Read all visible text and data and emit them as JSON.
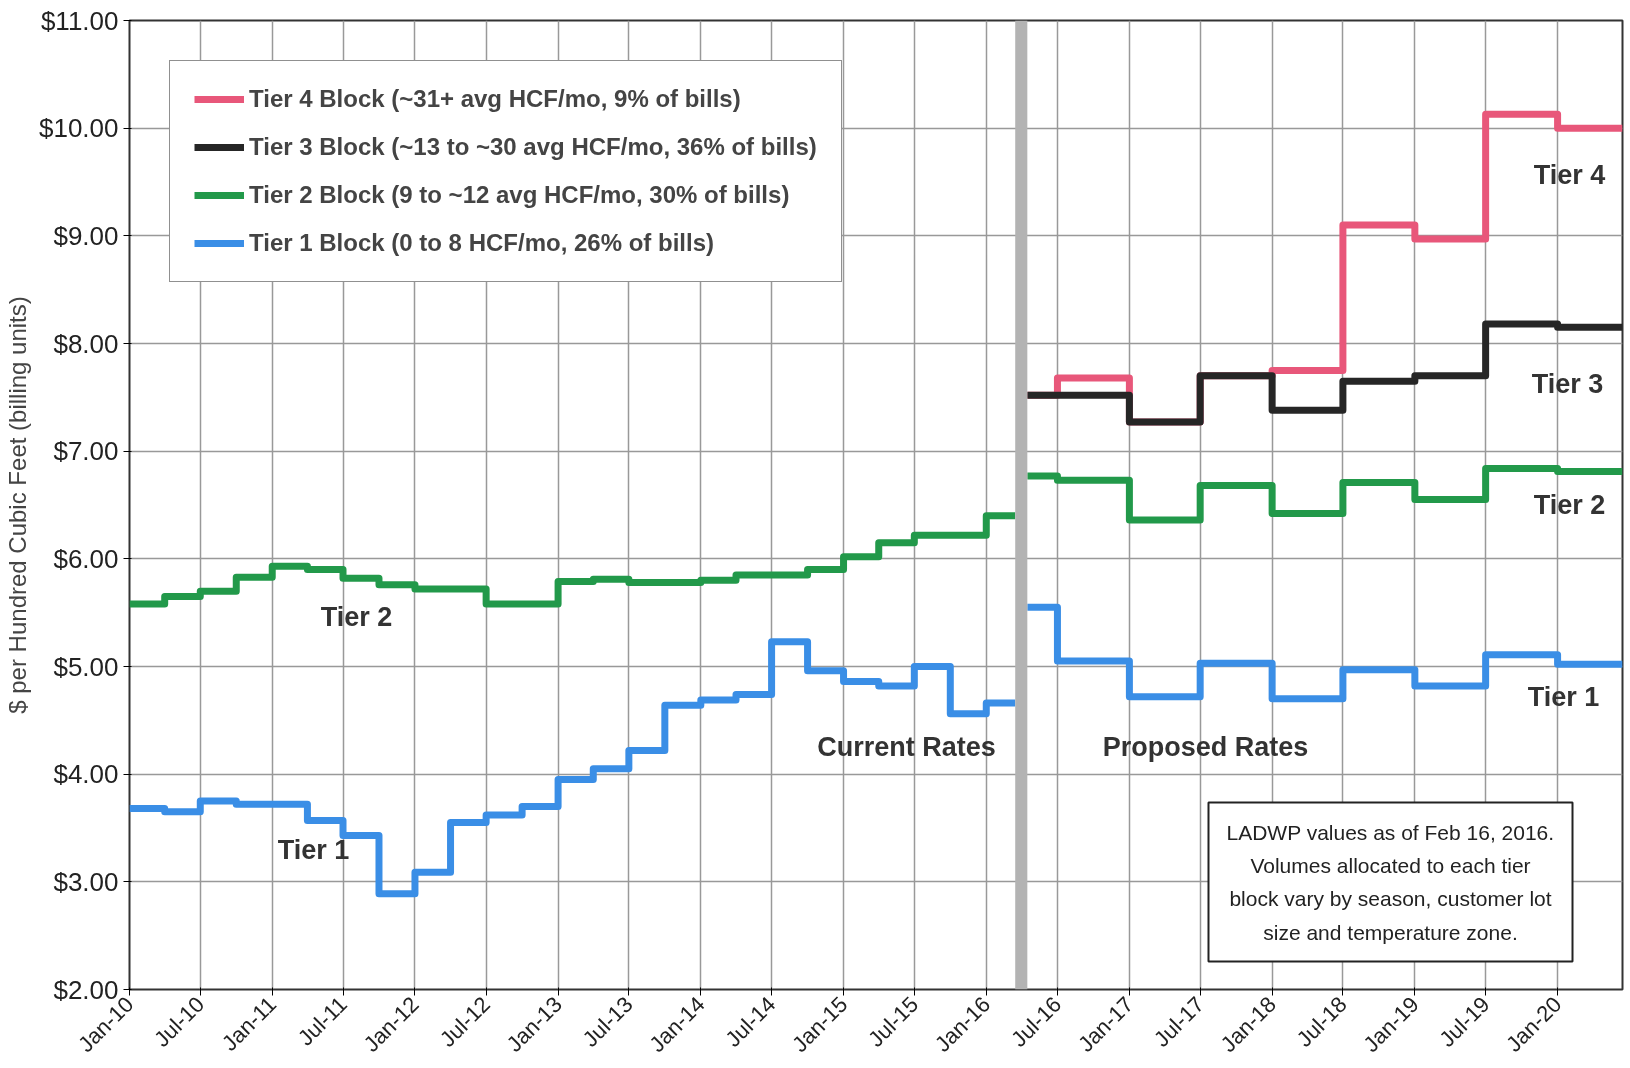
{
  "chart_data": {
    "type": "step",
    "ylabel": "$ per Hundred Cubic Feet (billing units)",
    "xlim": [
      "2010-01",
      "2020-06-15"
    ],
    "ylim": [
      2,
      11
    ],
    "xticks": [
      {
        "value": "2010-01",
        "label": "Jan-10"
      },
      {
        "value": "2010-07",
        "label": "Jul-10"
      },
      {
        "value": "2011-01",
        "label": "Jan-11"
      },
      {
        "value": "2011-07",
        "label": "Jul-11"
      },
      {
        "value": "2012-01",
        "label": "Jan-12"
      },
      {
        "value": "2012-07",
        "label": "Jul-12"
      },
      {
        "value": "2013-01",
        "label": "Jan-13"
      },
      {
        "value": "2013-07",
        "label": "Jul-13"
      },
      {
        "value": "2014-01",
        "label": "Jan-14"
      },
      {
        "value": "2014-07",
        "label": "Jul-14"
      },
      {
        "value": "2015-01",
        "label": "Jan-15"
      },
      {
        "value": "2015-07",
        "label": "Jul-15"
      },
      {
        "value": "2016-01",
        "label": "Jan-16"
      },
      {
        "value": "2016-07",
        "label": "Jul-16"
      },
      {
        "value": "2017-01",
        "label": "Jan-17"
      },
      {
        "value": "2017-07",
        "label": "Jul-17"
      },
      {
        "value": "2018-01",
        "label": "Jan-18"
      },
      {
        "value": "2018-07",
        "label": "Jul-18"
      },
      {
        "value": "2019-01",
        "label": "Jan-19"
      },
      {
        "value": "2019-07",
        "label": "Jul-19"
      },
      {
        "value": "2020-01",
        "label": "Jan-20"
      }
    ],
    "yticks": [
      {
        "value": 2,
        "label": "$2.00"
      },
      {
        "value": 3,
        "label": "$3.00"
      },
      {
        "value": 4,
        "label": "$4.00"
      },
      {
        "value": 5,
        "label": "$5.00"
      },
      {
        "value": 6,
        "label": "$6.00"
      },
      {
        "value": 7,
        "label": "$7.00"
      },
      {
        "value": 8,
        "label": "$8.00"
      },
      {
        "value": 9,
        "label": "$9.00"
      },
      {
        "value": 10,
        "label": "$10.00"
      },
      {
        "value": 11,
        "label": "$11.00"
      }
    ],
    "grid": true,
    "legend": "top left",
    "series": [
      {
        "name": "Tier 4 Block (~31+ avg HCF/mo, 9% of bills)",
        "color": "#e8577a",
        "x": [
          "2016-04-15",
          "2016-07",
          "2017-01",
          "2017-07",
          "2018-01",
          "2018-07",
          "2019-01",
          "2019-07",
          "2020-01",
          "2020-06-15"
        ],
        "values": [
          7.52,
          7.68,
          7.27,
          7.7,
          7.75,
          9.1,
          8.97,
          10.13,
          10.0,
          10.0
        ]
      },
      {
        "name": "Tier 3 Block (~13 to ~30 avg HCF/mo, 36% of bills)",
        "color": "#262626",
        "x": [
          "2016-04-15",
          "2017-01",
          "2017-07",
          "2018-01",
          "2018-07",
          "2019-01",
          "2019-07",
          "2020-01",
          "2020-06-15"
        ],
        "values": [
          7.52,
          7.27,
          7.7,
          7.38,
          7.65,
          7.7,
          8.18,
          8.15,
          8.15
        ]
      },
      {
        "name": "Tier 2 Block (9 to ~12 avg HCF/mo, 30% of bills)",
        "color": "#22994a",
        "x": [
          "2010-01",
          "2010-04",
          "2010-07",
          "2010-10",
          "2011-01",
          "2011-04",
          "2011-07",
          "2011-10",
          "2012-01",
          "2012-07",
          "2013-01",
          "2013-04",
          "2013-07",
          "2014-01",
          "2014-04",
          "2014-10",
          "2015-01",
          "2015-04",
          "2015-07",
          "2016-01",
          "2016-03-15",
          "2016-04-15",
          "2016-07",
          "2017-01",
          "2017-07",
          "2018-01",
          "2018-07",
          "2019-01",
          "2019-07",
          "2020-01",
          "2020-06-15"
        ],
        "values": [
          5.58,
          5.65,
          5.7,
          5.83,
          5.93,
          5.9,
          5.82,
          5.76,
          5.72,
          5.58,
          5.79,
          5.81,
          5.78,
          5.8,
          5.85,
          5.9,
          6.02,
          6.15,
          6.22,
          6.4,
          null,
          6.77,
          6.73,
          6.36,
          6.68,
          6.42,
          6.71,
          6.55,
          6.84,
          6.81,
          6.81
        ]
      },
      {
        "name": "Tier 1 Block (0 to 8 HCF/mo, 26% of bills)",
        "color": "#3a8ee6",
        "x": [
          "2010-01",
          "2010-04",
          "2010-07",
          "2010-10",
          "2011-04",
          "2011-07",
          "2011-10",
          "2012-01",
          "2012-04",
          "2012-07",
          "2012-10",
          "2013-01",
          "2013-04",
          "2013-07",
          "2013-10",
          "2014-01",
          "2014-04",
          "2014-07",
          "2014-10",
          "2015-01",
          "2015-04",
          "2015-07",
          "2015-10",
          "2016-01",
          "2016-03-15",
          "2016-04-15",
          "2016-07",
          "2017-01",
          "2017-07",
          "2018-01",
          "2018-07",
          "2019-01",
          "2019-07",
          "2020-01",
          "2020-06-15"
        ],
        "values": [
          3.68,
          3.65,
          3.75,
          3.72,
          3.57,
          3.43,
          2.89,
          3.09,
          3.55,
          3.62,
          3.7,
          3.95,
          4.05,
          4.22,
          4.64,
          4.69,
          4.74,
          5.23,
          4.96,
          4.86,
          4.82,
          5.0,
          4.56,
          4.66,
          null,
          5.55,
          5.05,
          4.72,
          5.03,
          4.7,
          4.97,
          4.82,
          5.11,
          5.02,
          5.02
        ]
      }
    ],
    "bands": [
      {
        "axis": "x",
        "from": "2016-03-15",
        "to": "2016-04-15",
        "color": "#b3b3b3"
      }
    ],
    "annotations": [
      "Tier 2",
      "Tier 1",
      "Current Rates",
      "Proposed Rates",
      "Tier 4",
      "Tier 3",
      "Tier 2",
      "Tier 1",
      "LADWP values as of Feb 16, 2016.\nVolumes allocated to each tier\nblock vary by season, customer lot\nsize and temperature zone."
    ]
  }
}
